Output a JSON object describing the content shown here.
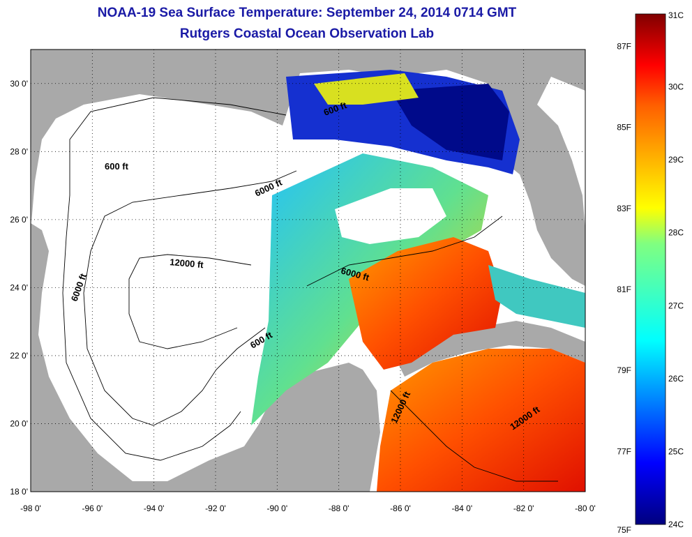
{
  "title": {
    "line1": "NOAA-19 Sea Surface Temperature:  September 24, 2014 0714 GMT",
    "line2": "Rutgers Coastal Ocean Observation Lab"
  },
  "map": {
    "lon_range": [
      -98,
      -80
    ],
    "lat_range": [
      18,
      31
    ],
    "lon_ticks": [
      "-98 0'",
      "-96 0'",
      "-94 0'",
      "-92 0'",
      "-90 0'",
      "-88 0'",
      "-86 0'",
      "-84 0'",
      "-82 0'",
      "-80 0'"
    ],
    "lat_ticks": [
      "18 0'",
      "20 0'",
      "22 0'",
      "24 0'",
      "26 0'",
      "28 0'",
      "30 0'"
    ],
    "contour_labels": [
      "600 ft",
      "6000 ft",
      "12000 ft",
      "6000 ft",
      "6000 ft",
      "600 ft",
      "600 ft",
      "12000 ft",
      "12000 ft"
    ],
    "land_color": "#a9a9a9",
    "nodata_color": "#ffffff"
  },
  "colorbar": {
    "celsius": [
      "31C",
      "30C",
      "29C",
      "28C",
      "27C",
      "26C",
      "25C",
      "24C"
    ],
    "fahrenheit": [
      "87F",
      "85F",
      "83F",
      "81F",
      "79F",
      "77F",
      "75F"
    ],
    "range_c": [
      24,
      31
    ],
    "colors": [
      "#00007f",
      "#0000ff",
      "#0080ff",
      "#00ffff",
      "#80ff80",
      "#ffff00",
      "#ff8000",
      "#ff0000",
      "#800000"
    ]
  }
}
